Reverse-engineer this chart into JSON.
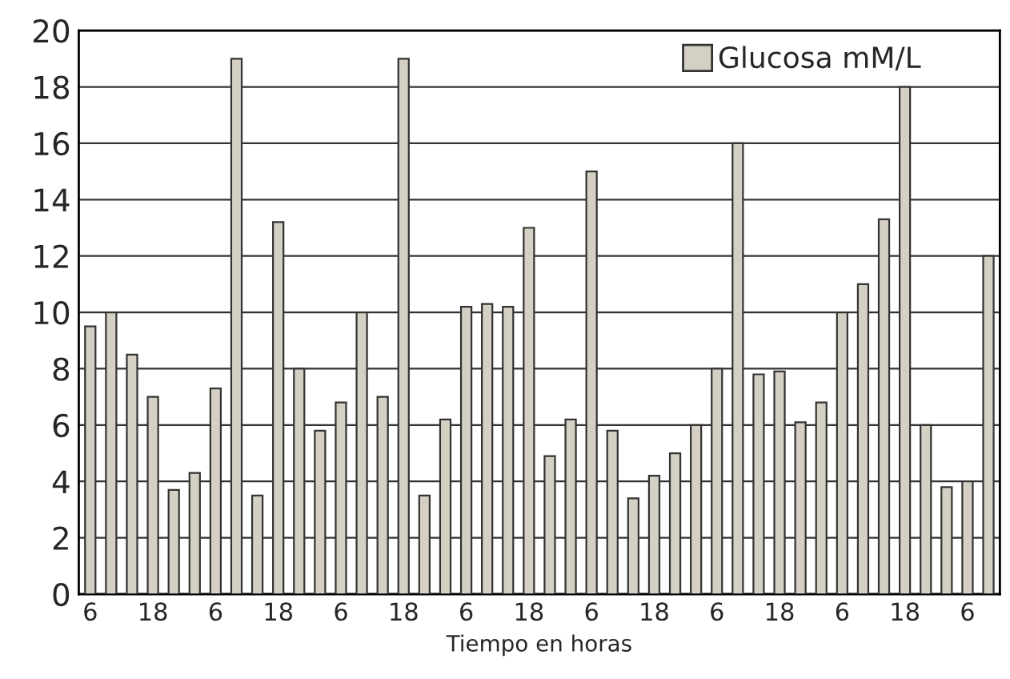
{
  "chart_data": {
    "type": "bar",
    "xlabel": "Tiempo en horas",
    "categories": [
      "6",
      null,
      null,
      "18",
      null,
      null,
      "6",
      null,
      null,
      "18",
      null,
      null,
      "6",
      null,
      null,
      "18",
      null,
      null,
      "6",
      null,
      null,
      "18",
      null,
      null,
      "6",
      null,
      null,
      "18",
      null,
      null,
      "6",
      null,
      null,
      "18",
      null,
      null,
      "6",
      null,
      null,
      "18",
      null,
      null,
      "6",
      null
    ],
    "series": [
      {
        "name": "Glucosa mM/L",
        "color": "#d4d0c4",
        "values": [
          9.5,
          10,
          8.5,
          7,
          3.7,
          4.3,
          7.3,
          19,
          3.5,
          13.2,
          8,
          5.8,
          6.8,
          10,
          7,
          19,
          3.5,
          6.2,
          10.2,
          10.3,
          10.2,
          13,
          4.9,
          6.2,
          15,
          5.8,
          3.4,
          4.2,
          5,
          6,
          8,
          16,
          7.8,
          7.9,
          6.1,
          6.8,
          10,
          11,
          13.3,
          18,
          6,
          3.8,
          4,
          12
        ]
      }
    ],
    "ylim": [
      0,
      20
    ],
    "yticks": [
      0,
      2,
      4,
      6,
      8,
      10,
      12,
      14,
      16,
      18,
      20
    ],
    "grid": "y",
    "legend": "top right"
  }
}
